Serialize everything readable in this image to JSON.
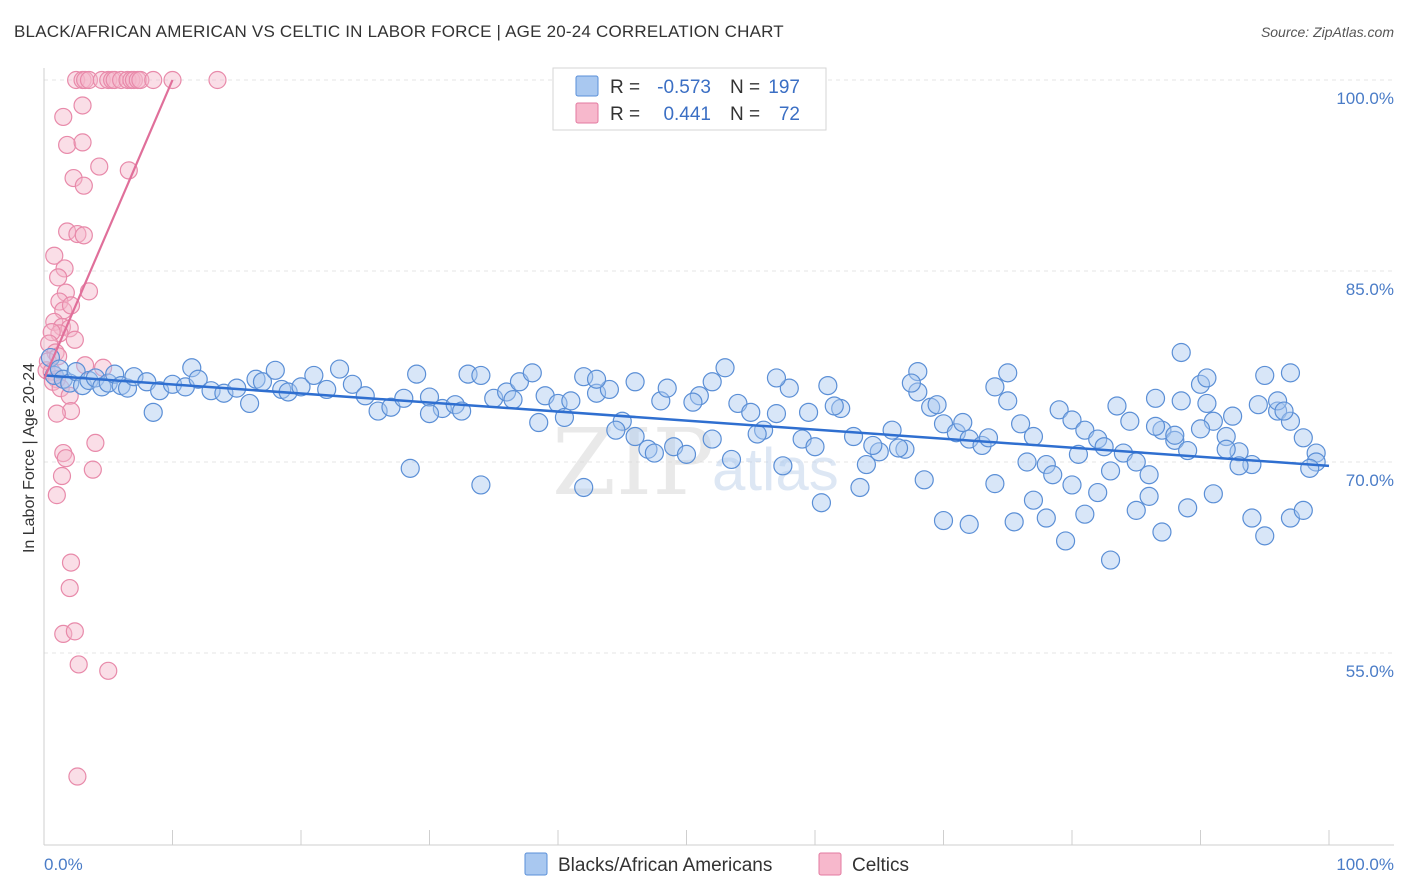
{
  "header": {
    "title": "BLACK/AFRICAN AMERICAN VS CELTIC IN LABOR FORCE | AGE 20-24 CORRELATION CHART",
    "source": "Source: ZipAtlas.com"
  },
  "watermark": {
    "zip": "ZIP",
    "atlas": "atlas"
  },
  "legend": {
    "rows": [
      {
        "r_label": "R =",
        "r_value": "-0.573",
        "n_label": "N =",
        "n_value": "197",
        "color": "#a9c8f0",
        "stroke": "#5a8fd8"
      },
      {
        "r_label": "R =",
        "r_value": "0.441",
        "n_label": "N =",
        "n_value": "72",
        "color": "#f7b8cc",
        "stroke": "#e37aa0"
      }
    ]
  },
  "bottom_legend": [
    {
      "label": "Blacks/African Americans",
      "color": "#a9c8f0",
      "stroke": "#5a8fd8"
    },
    {
      "label": "Celtics",
      "color": "#f7b8cc",
      "stroke": "#e37aa0"
    }
  ],
  "colors": {
    "blue_fill": "#a9c8f0",
    "blue_stroke": "#5b8fd6",
    "blue_line": "#2f6fd0",
    "pink_fill": "#f5b5ca",
    "pink_stroke": "#e88aaa",
    "pink_line": "#e06f9a",
    "grid": "#e4e4e4",
    "tick_label": "#4a7cc7"
  },
  "chart_data": {
    "type": "scatter",
    "title": "BLACK/AFRICAN AMERICAN VS CELTIC IN LABOR FORCE | AGE 20-24 CORRELATION CHART",
    "xlabel": "",
    "ylabel": "In Labor Force | Age 20-24",
    "xlim": [
      0,
      100
    ],
    "ylim": [
      40,
      101.5
    ],
    "x_tick_labels": [
      "0.0%",
      "100.0%"
    ],
    "y_ticks": [
      {
        "value": 100,
        "label": "100.0%"
      },
      {
        "value": 85,
        "label": "85.0%"
      },
      {
        "value": 70,
        "label": "70.0%"
      },
      {
        "value": 55,
        "label": "55.0%"
      }
    ],
    "grid": true,
    "legend_position": "top-center",
    "series": [
      {
        "name": "Blacks/African Americans",
        "stats": {
          "R": -0.573,
          "N": 197
        },
        "trend": {
          "x": [
            0,
            100
          ],
          "y": [
            76.8,
            69.7
          ]
        },
        "points": [
          [
            0.5,
            78.2
          ],
          [
            0.8,
            76.8
          ],
          [
            1.2,
            77.3
          ],
          [
            1.5,
            76.5
          ],
          [
            2.0,
            76.2
          ],
          [
            2.5,
            77.1
          ],
          [
            3.0,
            76.0
          ],
          [
            3.5,
            76.4
          ],
          [
            4.0,
            76.6
          ],
          [
            4.5,
            75.9
          ],
          [
            5.0,
            76.2
          ],
          [
            5.5,
            76.9
          ],
          [
            6.0,
            76.0
          ],
          [
            6.5,
            75.8
          ],
          [
            7.0,
            76.7
          ],
          [
            8.0,
            76.3
          ],
          [
            9.0,
            75.6
          ],
          [
            8.5,
            73.9
          ],
          [
            10.0,
            76.1
          ],
          [
            11.0,
            75.9
          ],
          [
            11.5,
            77.4
          ],
          [
            12.0,
            76.5
          ],
          [
            13.0,
            75.6
          ],
          [
            14.0,
            75.4
          ],
          [
            15.0,
            75.8
          ],
          [
            16.0,
            74.6
          ],
          [
            16.5,
            76.5
          ],
          [
            17.0,
            76.3
          ],
          [
            18.0,
            77.2
          ],
          [
            18.5,
            75.7
          ],
          [
            19.0,
            75.5
          ],
          [
            20.0,
            75.9
          ],
          [
            21.0,
            76.8
          ],
          [
            22.0,
            75.7
          ],
          [
            23.0,
            77.3
          ],
          [
            24.0,
            76.1
          ],
          [
            25.0,
            75.2
          ],
          [
            26.0,
            74.0
          ],
          [
            27.0,
            74.3
          ],
          [
            28.0,
            75.0
          ],
          [
            28.5,
            69.5
          ],
          [
            29.0,
            76.9
          ],
          [
            30.0,
            75.1
          ],
          [
            31.0,
            74.2
          ],
          [
            32.0,
            74.5
          ],
          [
            33.0,
            76.9
          ],
          [
            34.0,
            76.8
          ],
          [
            35.0,
            75.0
          ],
          [
            36.0,
            75.5
          ],
          [
            37.0,
            76.3
          ],
          [
            38.0,
            77.0
          ],
          [
            38.5,
            73.1
          ],
          [
            39.0,
            75.2
          ],
          [
            40.0,
            74.6
          ],
          [
            41.0,
            74.8
          ],
          [
            42.0,
            76.7
          ],
          [
            43.0,
            75.4
          ],
          [
            44.0,
            75.7
          ],
          [
            45.0,
            73.2
          ],
          [
            46.0,
            72.0
          ],
          [
            47.0,
            71.0
          ],
          [
            48.0,
            74.8
          ],
          [
            49.0,
            71.2
          ],
          [
            50.0,
            70.6
          ],
          [
            51.0,
            75.2
          ],
          [
            52.0,
            76.3
          ],
          [
            53.0,
            77.4
          ],
          [
            54.0,
            74.6
          ],
          [
            55.0,
            73.9
          ],
          [
            56.0,
            72.5
          ],
          [
            57.0,
            73.8
          ],
          [
            58.0,
            75.8
          ],
          [
            59.0,
            71.8
          ],
          [
            60.0,
            71.2
          ],
          [
            60.5,
            66.8
          ],
          [
            61.0,
            76.0
          ],
          [
            62.0,
            74.2
          ],
          [
            63.0,
            72.0
          ],
          [
            64.0,
            69.8
          ],
          [
            65.0,
            70.8
          ],
          [
            66.0,
            72.5
          ],
          [
            67.0,
            71.0
          ],
          [
            68.0,
            75.5
          ],
          [
            69.0,
            74.3
          ],
          [
            70.0,
            73.0
          ],
          [
            71.0,
            72.3
          ],
          [
            72.0,
            71.8
          ],
          [
            73.0,
            71.3
          ],
          [
            74.0,
            75.9
          ],
          [
            75.0,
            74.8
          ],
          [
            76.0,
            73.0
          ],
          [
            77.0,
            72.0
          ],
          [
            78.0,
            69.8
          ],
          [
            79.0,
            74.1
          ],
          [
            80.0,
            73.3
          ],
          [
            81.0,
            72.5
          ],
          [
            82.0,
            71.8
          ],
          [
            83.0,
            69.3
          ],
          [
            83.5,
            74.4
          ],
          [
            84.0,
            70.7
          ],
          [
            85.0,
            70.0
          ],
          [
            86.0,
            69.0
          ],
          [
            86.5,
            75.0
          ],
          [
            87.0,
            72.5
          ],
          [
            88.0,
            71.7
          ],
          [
            89.0,
            70.9
          ],
          [
            90.0,
            76.1
          ],
          [
            90.5,
            74.6
          ],
          [
            91.0,
            73.2
          ],
          [
            92.0,
            72.0
          ],
          [
            93.0,
            70.8
          ],
          [
            94.0,
            69.8
          ],
          [
            95.0,
            76.8
          ],
          [
            96.0,
            74.0
          ],
          [
            97.0,
            73.2
          ],
          [
            98.0,
            71.9
          ],
          [
            99.0,
            70.7
          ],
          [
            68.5,
            68.6
          ],
          [
            70.0,
            65.4
          ],
          [
            72.0,
            65.1
          ],
          [
            74.0,
            68.3
          ],
          [
            75.5,
            65.3
          ],
          [
            77.0,
            67.0
          ],
          [
            78.0,
            65.6
          ],
          [
            79.5,
            63.8
          ],
          [
            80.0,
            68.2
          ],
          [
            81.0,
            65.9
          ],
          [
            82.0,
            67.6
          ],
          [
            83.0,
            62.3
          ],
          [
            85.0,
            66.2
          ],
          [
            86.0,
            67.3
          ],
          [
            87.0,
            64.5
          ],
          [
            88.0,
            72.1
          ],
          [
            89.0,
            66.4
          ],
          [
            90.0,
            72.6
          ],
          [
            91.0,
            67.5
          ],
          [
            92.0,
            71.0
          ],
          [
            93.0,
            69.7
          ],
          [
            94.0,
            65.6
          ],
          [
            95.0,
            64.2
          ],
          [
            96.0,
            74.8
          ],
          [
            97.0,
            65.6
          ],
          [
            98.0,
            66.2
          ],
          [
            99.0,
            70.0
          ],
          [
            88.5,
            78.6
          ],
          [
            90.5,
            76.6
          ],
          [
            97.0,
            77.0
          ],
          [
            75.0,
            77.0
          ],
          [
            68.0,
            77.1
          ],
          [
            57.0,
            76.6
          ],
          [
            52.0,
            71.8
          ],
          [
            48.5,
            75.8
          ],
          [
            46.0,
            76.3
          ],
          [
            43.0,
            76.5
          ],
          [
            42.0,
            68.0
          ],
          [
            34.0,
            68.2
          ],
          [
            30.0,
            73.8
          ],
          [
            32.5,
            74.0
          ],
          [
            36.5,
            74.9
          ],
          [
            40.5,
            73.5
          ],
          [
            44.5,
            72.5
          ],
          [
            47.5,
            70.7
          ],
          [
            50.5,
            74.7
          ],
          [
            53.5,
            70.2
          ],
          [
            55.5,
            72.2
          ],
          [
            57.5,
            69.7
          ],
          [
            59.5,
            73.9
          ],
          [
            61.5,
            74.4
          ],
          [
            63.5,
            68.0
          ],
          [
            64.5,
            71.3
          ],
          [
            66.5,
            71.1
          ],
          [
            67.5,
            76.2
          ],
          [
            69.5,
            74.5
          ],
          [
            71.5,
            73.1
          ],
          [
            73.5,
            71.9
          ],
          [
            76.5,
            70.0
          ],
          [
            78.5,
            69.0
          ],
          [
            80.5,
            70.6
          ],
          [
            82.5,
            71.2
          ],
          [
            84.5,
            73.2
          ],
          [
            86.5,
            72.8
          ],
          [
            88.5,
            74.8
          ],
          [
            92.5,
            73.6
          ],
          [
            94.5,
            74.5
          ],
          [
            96.5,
            74.0
          ],
          [
            98.5,
            69.5
          ]
        ]
      },
      {
        "name": "Celtics",
        "stats": {
          "R": 0.441,
          "N": 72
        },
        "trend": {
          "x": [
            0,
            10
          ],
          "y": [
            76.5,
            100
          ]
        },
        "points": [
          [
            2.5,
            100
          ],
          [
            3.0,
            100
          ],
          [
            3.2,
            100
          ],
          [
            3.5,
            100
          ],
          [
            4.5,
            100
          ],
          [
            5.0,
            100
          ],
          [
            5.3,
            100
          ],
          [
            5.5,
            100
          ],
          [
            6.0,
            100
          ],
          [
            6.5,
            100
          ],
          [
            6.8,
            100
          ],
          [
            7.0,
            100
          ],
          [
            7.3,
            100
          ],
          [
            7.5,
            100
          ],
          [
            8.5,
            100
          ],
          [
            10.0,
            100
          ],
          [
            13.5,
            100
          ],
          [
            3.0,
            98.0
          ],
          [
            1.5,
            97.1
          ],
          [
            1.8,
            94.9
          ],
          [
            3.0,
            95.1
          ],
          [
            4.3,
            93.2
          ],
          [
            6.6,
            92.9
          ],
          [
            2.3,
            92.3
          ],
          [
            3.1,
            91.7
          ],
          [
            1.8,
            88.1
          ],
          [
            2.6,
            87.9
          ],
          [
            3.1,
            87.8
          ],
          [
            0.8,
            86.2
          ],
          [
            1.6,
            85.2
          ],
          [
            1.1,
            84.5
          ],
          [
            3.5,
            83.4
          ],
          [
            1.7,
            83.3
          ],
          [
            1.2,
            82.6
          ],
          [
            1.5,
            81.9
          ],
          [
            2.1,
            82.3
          ],
          [
            0.8,
            81.0
          ],
          [
            1.4,
            80.6
          ],
          [
            2.0,
            80.5
          ],
          [
            1.2,
            80.1
          ],
          [
            0.6,
            80.2
          ],
          [
            2.4,
            79.6
          ],
          [
            0.4,
            79.3
          ],
          [
            0.9,
            78.6
          ],
          [
            0.3,
            77.9
          ],
          [
            1.1,
            78.3
          ],
          [
            0.2,
            77.2
          ],
          [
            0.6,
            77.1
          ],
          [
            3.2,
            77.6
          ],
          [
            4.6,
            77.4
          ],
          [
            1.0,
            76.5
          ],
          [
            0.7,
            76.3
          ],
          [
            1.3,
            75.8
          ],
          [
            2.0,
            75.2
          ],
          [
            2.1,
            74.0
          ],
          [
            1.0,
            73.8
          ],
          [
            4.0,
            71.5
          ],
          [
            1.5,
            70.7
          ],
          [
            1.7,
            70.3
          ],
          [
            3.8,
            69.4
          ],
          [
            1.4,
            68.9
          ],
          [
            1.0,
            67.4
          ],
          [
            2.1,
            62.1
          ],
          [
            2.0,
            60.1
          ],
          [
            1.5,
            56.5
          ],
          [
            2.4,
            56.7
          ],
          [
            2.7,
            54.1
          ],
          [
            5.0,
            53.6
          ],
          [
            2.6,
            45.3
          ]
        ]
      }
    ]
  }
}
